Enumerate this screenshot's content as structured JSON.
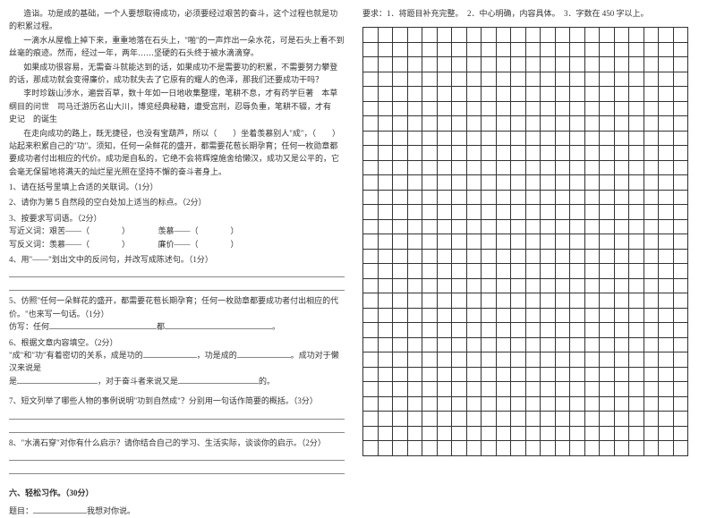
{
  "left": {
    "paragraphs": [
      "造诣。功是成的基础，一个人要想取得成功，必须要经过艰苦的奋斗，这个过程也就是功的积累过程。",
      "一滴水从屋檐上掉下来，重重地落在石头上，\"啪\"的一声炸出一朵水花，可是石头上看不到丝毫的痕迹。然而，经过一年，两年……坚硬的石头终于被水滴滴穿。",
      "如果成功很容易，无需奋斗就能达到的话，如果成功不是需要功的积累，不需要努力攀登的话，那成功就会变得廉价，成功就失去了它原有的耀人的色泽，那我们还要成功干吗？",
      "李时珍跋山涉水，遍尝百草，数十年如一日地收集整理，笔耕不息，才有药学巨著　本草纲目的问世　司马迁游历名山大川，博览经典秘籍，遭受宫刑，忍辱负重，笔耕不辍，才有　史记　的诞生",
      "在走向成功的路上，既无捷径，也没有宝葫芦，所以（　　）坐着羡慕别人\"成\"，（　　）站起来积累自己的\"功\"。须知，任何一朵鲜花的盛开，都需要花苞长期孕育；任何一枚勋章都要成功者付出相应的代价。成功是自私的，它绝不会将辉煌施舍给懒汉，成功又是公平的，它会毫无保留地将满天的灿烂星光照在坚持不懈的奋斗者身上。"
    ],
    "questions": [
      {
        "num": "1",
        "text": "、请在括号里填上合适的关联词。（1分）"
      },
      {
        "num": "2",
        "text": "、请你为第５自然段的空白处加上适当的标点。（2分）"
      },
      {
        "num": "3",
        "text": "、按要求写词语。（2分）"
      }
    ],
    "word_lines": [
      {
        "a_label": "写近义词：艰苦——（",
        "b_label": "羡慕——（"
      },
      {
        "a_label": "写反义词：羡慕——（",
        "b_label": "廉价——（"
      }
    ],
    "q4": "4、用\"——\"划出文中的反问句，并改写成陈述句。（1分）",
    "q5a": "5、仿照\"任何一朵鲜花的盛开，都需要花苞长期孕育；任何一枚勋章都要成功者付出相应的代价。\"也来写一句话。（1分）",
    "q5b_prefix": "仿写：任何",
    "q5b_mid": "都",
    "q6": "6、根据文章内容填空。（2分）",
    "q6_line": "\"成\"和\"功\"有着密切的关系，成是功的",
    "q6_mid1": "，功是成的",
    "q6_mid2": "。成功对于懒汉来说是",
    "q6_end": "，对于奋斗者来说又是",
    "q6_tail": "的。",
    "q7": "7、短文列举了哪些人物的事例说明\"功到自然成\"？分别用一句话作简要的概括。（3分）",
    "q8": "8、\"水滴石穿\"对你有什么启示？请你结合自己的学习、生活实际，谈谈你的启示。（2分）",
    "section_title": "六、轻松习作。（30分）",
    "topic_prefix": "题目：",
    "topic_suffix": "我想对你说。"
  },
  "right": {
    "requirements": "要求：1．将题目补充完整。　2．中心明确，内容具体。　3．字数在 450 字以上。",
    "grid": {
      "rows": 29,
      "cols": 22
    }
  }
}
